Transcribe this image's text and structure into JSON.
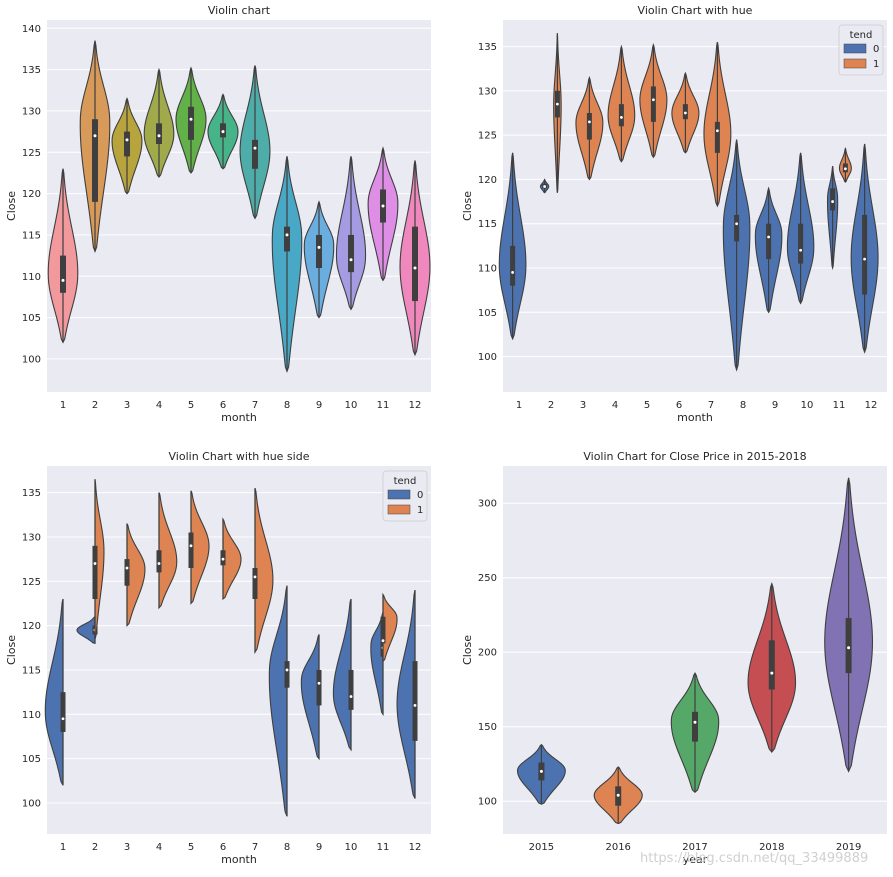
{
  "watermark": "https://blog.csdn.net/qq_33499889",
  "chart_data": [
    {
      "type": "violin",
      "title": "Violin chart",
      "xlabel": "month",
      "ylabel": "Close",
      "ylim": [
        96,
        141
      ],
      "yticks": [
        100,
        105,
        110,
        115,
        120,
        125,
        130,
        135,
        140
      ],
      "categories": [
        "1",
        "2",
        "3",
        "4",
        "5",
        "6",
        "7",
        "8",
        "9",
        "10",
        "11",
        "12"
      ],
      "palette": [
        "#f1999d",
        "#d79a58",
        "#b7a43d",
        "#a1aa4b",
        "#62b048",
        "#47b388",
        "#4eaca9",
        "#49a8c6",
        "#6aaee0",
        "#a59be3",
        "#df8ee6",
        "#ef89bd"
      ],
      "violins": [
        {
          "min": 102,
          "q1": 108,
          "median": 109.5,
          "q3": 112.5,
          "max": 123,
          "peak": 110
        },
        {
          "min": 113,
          "q1": 119,
          "median": 127,
          "q3": 129,
          "max": 138.5,
          "peak": 129
        },
        {
          "min": 120,
          "q1": 124.5,
          "median": 126.5,
          "q3": 127.5,
          "max": 131.5,
          "peak": 126.5
        },
        {
          "min": 122,
          "q1": 126,
          "median": 127,
          "q3": 128.5,
          "max": 135,
          "peak": 127
        },
        {
          "min": 122.5,
          "q1": 126.5,
          "median": 129,
          "q3": 130.5,
          "max": 135.2,
          "peak": 129
        },
        {
          "min": 123,
          "q1": 126.8,
          "median": 127.5,
          "q3": 128.5,
          "max": 132,
          "peak": 127.5
        },
        {
          "min": 117,
          "q1": 123,
          "median": 125.5,
          "q3": 126.5,
          "max": 135.5,
          "peak": 125
        },
        {
          "min": 98.5,
          "q1": 113,
          "median": 115,
          "q3": 116,
          "max": 124.5,
          "peak": 115
        },
        {
          "min": 105,
          "q1": 111,
          "median": 113.5,
          "q3": 115,
          "max": 119,
          "peak": 114
        },
        {
          "min": 106,
          "q1": 110.5,
          "median": 112,
          "q3": 115,
          "max": 124.5,
          "peak": 112
        },
        {
          "min": 109.5,
          "q1": 116.5,
          "median": 118.5,
          "q3": 120.5,
          "max": 125.5,
          "peak": 119
        },
        {
          "min": 100.5,
          "q1": 107,
          "median": 111,
          "q3": 116,
          "max": 124,
          "peak": 111
        }
      ]
    },
    {
      "type": "violin",
      "title": "Violin Chart with hue",
      "xlabel": "month",
      "ylabel": "Close",
      "ylim": [
        96,
        138
      ],
      "yticks": [
        100,
        105,
        110,
        115,
        120,
        125,
        130,
        135
      ],
      "categories": [
        "1",
        "2",
        "3",
        "4",
        "5",
        "6",
        "7",
        "8",
        "9",
        "10",
        "11",
        "12"
      ],
      "legend": {
        "title": "tend",
        "entries": [
          "0",
          "1"
        ],
        "colors": [
          "#4c72b0",
          "#dd8452"
        ],
        "position": "top-right"
      },
      "violins": [
        {
          "hue": "0",
          "min": 102,
          "q1": 108,
          "median": 109.5,
          "q3": 112.5,
          "max": 123,
          "peak": 110,
          "scale": 1
        },
        {
          "hue": "0",
          "min": 118.5,
          "q1": 119,
          "median": 119.2,
          "q3": 119.5,
          "max": 120,
          "peak": 119.2,
          "scale": 0.55
        },
        {
          "hue": "1",
          "min": 118.5,
          "q1": 127,
          "median": 128.5,
          "q3": 130,
          "max": 136.5,
          "peak": 128.5,
          "scale": 0.5
        },
        {
          "hue": "1",
          "min": 120,
          "q1": 124.5,
          "median": 126.5,
          "q3": 127.5,
          "max": 131.5,
          "peak": 126.5,
          "scale": 1
        },
        {
          "hue": "1",
          "min": 122,
          "q1": 126,
          "median": 127,
          "q3": 128.5,
          "max": 135,
          "peak": 127,
          "scale": 1
        },
        {
          "hue": "1",
          "min": 122.5,
          "q1": 126.5,
          "median": 129,
          "q3": 130.5,
          "max": 135.2,
          "peak": 129,
          "scale": 1
        },
        {
          "hue": "1",
          "min": 123,
          "q1": 126.8,
          "median": 127.5,
          "q3": 128.5,
          "max": 132,
          "peak": 127.5,
          "scale": 1
        },
        {
          "hue": "1",
          "min": 117,
          "q1": 123,
          "median": 125.5,
          "q3": 126.5,
          "max": 135.5,
          "peak": 125,
          "scale": 1
        },
        {
          "hue": "0",
          "min": 98.5,
          "q1": 113,
          "median": 115,
          "q3": 116,
          "max": 124.5,
          "peak": 115,
          "scale": 1
        },
        {
          "hue": "0",
          "min": 105,
          "q1": 111,
          "median": 113.5,
          "q3": 115,
          "max": 119,
          "peak": 114,
          "scale": 1
        },
        {
          "hue": "0",
          "min": 106,
          "q1": 110.5,
          "median": 112,
          "q3": 115,
          "max": 123,
          "peak": 112,
          "scale": 1
        },
        {
          "hue": "0",
          "min": 110,
          "q1": 116.5,
          "median": 117.5,
          "q3": 119,
          "max": 121.5,
          "peak": 118,
          "scale": 0.7
        },
        {
          "hue": "1",
          "min": 119.7,
          "q1": 120.8,
          "median": 121.2,
          "q3": 121.8,
          "max": 123.5,
          "peak": 121.2,
          "scale": 0.8
        },
        {
          "hue": "0",
          "min": 100.5,
          "q1": 107,
          "median": 111,
          "q3": 116,
          "max": 124,
          "peak": 111,
          "scale": 1
        }
      ]
    },
    {
      "type": "violin",
      "title": "Violin Chart with hue side",
      "xlabel": "month",
      "ylabel": "Close",
      "ylim": [
        96.5,
        138
      ],
      "yticks": [
        100,
        105,
        110,
        115,
        120,
        125,
        130,
        135
      ],
      "categories": [
        "1",
        "2",
        "3",
        "4",
        "5",
        "6",
        "7",
        "8",
        "9",
        "10",
        "11",
        "12"
      ],
      "legend": {
        "title": "tend",
        "entries": [
          "0",
          "1"
        ],
        "colors": [
          "#4c72b0",
          "#dd8452"
        ],
        "position": "top-right"
      },
      "violins": [
        {
          "hue": "0",
          "min": 102,
          "q1": 108,
          "median": 109.5,
          "q3": 112.5,
          "max": 123,
          "peak": 110,
          "scale": 1
        },
        {
          "hue": "0",
          "min": 118,
          "q1": 119,
          "median": 119.5,
          "q3": 120,
          "max": 121,
          "peak": 119.5,
          "scale": 1
        },
        {
          "hue": "1",
          "min": 118.5,
          "q1": 123,
          "median": 127,
          "q3": 129,
          "max": 136.5,
          "peak": 128.5,
          "scale": 0.5
        },
        {
          "hue": "1",
          "min": 120,
          "q1": 124.5,
          "median": 126.5,
          "q3": 127.5,
          "max": 131.5,
          "peak": 126.5,
          "scale": 1
        },
        {
          "hue": "1",
          "min": 122,
          "q1": 126,
          "median": 127,
          "q3": 128.5,
          "max": 135,
          "peak": 127,
          "scale": 1
        },
        {
          "hue": "1",
          "min": 122.5,
          "q1": 126.5,
          "median": 129,
          "q3": 130.5,
          "max": 135.2,
          "peak": 129,
          "scale": 1
        },
        {
          "hue": "1",
          "min": 123,
          "q1": 126.8,
          "median": 127.5,
          "q3": 128.5,
          "max": 132,
          "peak": 127.5,
          "scale": 1
        },
        {
          "hue": "1",
          "min": 117,
          "q1": 123,
          "median": 125.5,
          "q3": 126.5,
          "max": 135.5,
          "peak": 125,
          "scale": 1
        },
        {
          "hue": "0",
          "min": 98.5,
          "q1": 113,
          "median": 115,
          "q3": 116,
          "max": 124.5,
          "peak": 115,
          "scale": 1
        },
        {
          "hue": "0",
          "min": 105,
          "q1": 111,
          "median": 113.5,
          "q3": 115,
          "max": 119,
          "peak": 114,
          "scale": 1
        },
        {
          "hue": "0",
          "min": 106,
          "q1": 110.5,
          "median": 112,
          "q3": 115,
          "max": 123,
          "peak": 112,
          "scale": 1
        },
        {
          "hue": "0",
          "min": 110,
          "q1": 116.5,
          "median": 117.5,
          "q3": 119,
          "max": 121.5,
          "peak": 118,
          "scale": 0.7
        },
        {
          "hue": "1",
          "min": 116,
          "q1": 118,
          "median": 118.3,
          "q3": 121,
          "max": 123.5,
          "peak": 121,
          "scale": 0.8
        },
        {
          "hue": "0",
          "min": 100.5,
          "q1": 107,
          "median": 111,
          "q3": 116,
          "max": 124,
          "peak": 111,
          "scale": 1
        }
      ]
    },
    {
      "type": "violin",
      "title": "Violin Chart for Close Price in 2015-2018",
      "xlabel": "year",
      "ylabel": "Close",
      "ylim": [
        78,
        325
      ],
      "yticks": [
        100,
        150,
        200,
        250,
        300
      ],
      "categories": [
        "2015",
        "2016",
        "2017",
        "2018",
        "2019"
      ],
      "palette": [
        "#4c72b0",
        "#dd8452",
        "#55a868",
        "#c44e52",
        "#8172b3"
      ],
      "violins": [
        {
          "min": 98,
          "q1": 114,
          "median": 120,
          "q3": 126,
          "max": 138,
          "peak": 121
        },
        {
          "min": 85,
          "q1": 97,
          "median": 104,
          "q3": 110,
          "max": 123,
          "peak": 104
        },
        {
          "min": 106,
          "q1": 140,
          "median": 153,
          "q3": 160,
          "max": 186,
          "peak": 155
        },
        {
          "min": 133,
          "q1": 175,
          "median": 186,
          "q3": 208,
          "max": 246,
          "peak": 178
        },
        {
          "min": 120,
          "q1": 186,
          "median": 203,
          "q3": 223,
          "max": 317,
          "peak": 205
        }
      ]
    }
  ]
}
